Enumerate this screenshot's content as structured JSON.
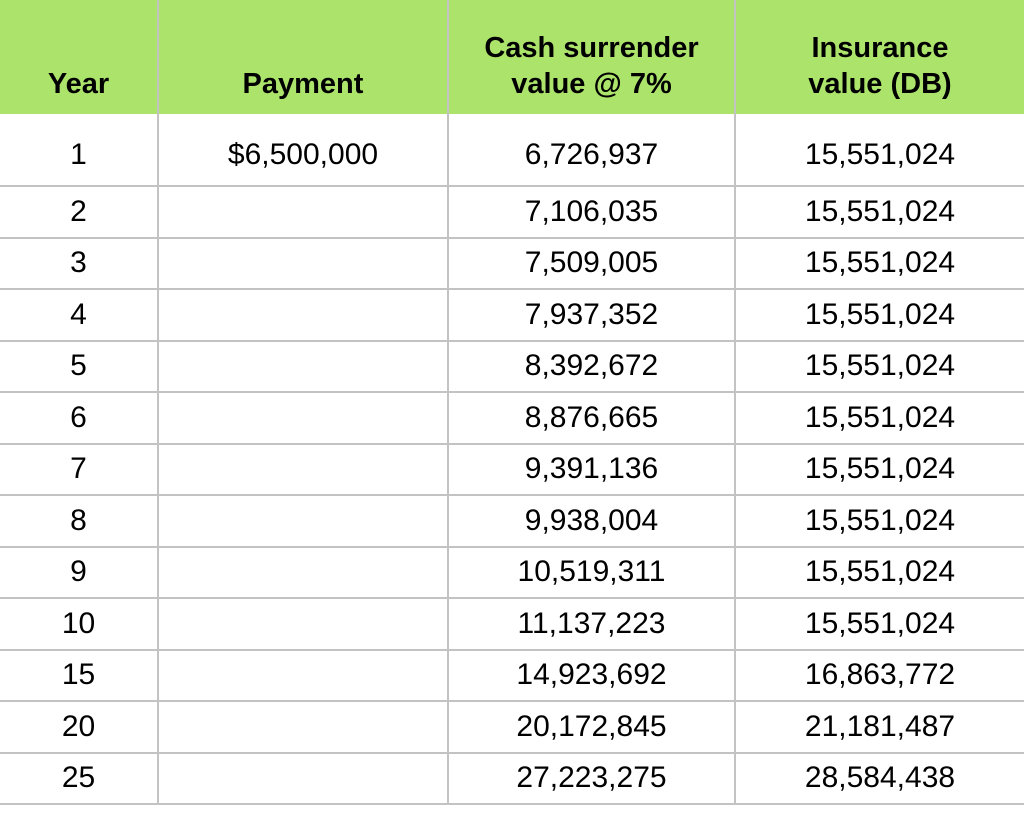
{
  "colors": {
    "header_bg": "#ace36b",
    "grid_line": "#c3c3c3",
    "text": "#000000"
  },
  "table": {
    "headers": {
      "year": "Year",
      "payment": "Payment",
      "cash_surrender": "Cash surrender\nvalue @ 7%",
      "insurance": "Insurance\nvalue (DB)"
    },
    "rows": [
      {
        "year": "1",
        "payment": "$6,500,000",
        "cash_surrender": "6,726,937",
        "insurance": "15,551,024"
      },
      {
        "year": "2",
        "payment": "",
        "cash_surrender": "7,106,035",
        "insurance": "15,551,024"
      },
      {
        "year": "3",
        "payment": "",
        "cash_surrender": "7,509,005",
        "insurance": "15,551,024"
      },
      {
        "year": "4",
        "payment": "",
        "cash_surrender": "7,937,352",
        "insurance": "15,551,024"
      },
      {
        "year": "5",
        "payment": "",
        "cash_surrender": "8,392,672",
        "insurance": "15,551,024"
      },
      {
        "year": "6",
        "payment": "",
        "cash_surrender": "8,876,665",
        "insurance": "15,551,024"
      },
      {
        "year": "7",
        "payment": "",
        "cash_surrender": "9,391,136",
        "insurance": "15,551,024"
      },
      {
        "year": "8",
        "payment": "",
        "cash_surrender": "9,938,004",
        "insurance": "15,551,024"
      },
      {
        "year": "9",
        "payment": "",
        "cash_surrender": "10,519,311",
        "insurance": "15,551,024"
      },
      {
        "year": "10",
        "payment": "",
        "cash_surrender": "11,137,223",
        "insurance": "15,551,024"
      },
      {
        "year": "15",
        "payment": "",
        "cash_surrender": "14,923,692",
        "insurance": "16,863,772"
      },
      {
        "year": "20",
        "payment": "",
        "cash_surrender": "20,172,845",
        "insurance": "21,181,487"
      },
      {
        "year": "25",
        "payment": "",
        "cash_surrender": "27,223,275",
        "insurance": "28,584,438"
      }
    ]
  }
}
